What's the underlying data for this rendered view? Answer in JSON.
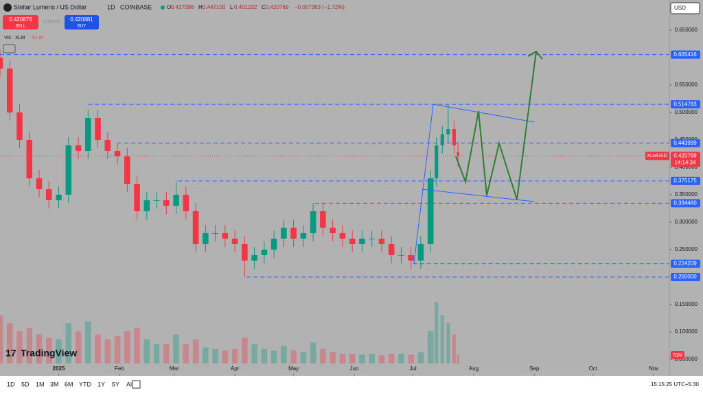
{
  "header": {
    "symbol": "Stellar Lumens / US Dollar",
    "interval": "1D",
    "exchange": "COINBASE",
    "ohlc": [
      {
        "key": "O",
        "value": "0.427998"
      },
      {
        "key": "H",
        "value": "0.447100"
      },
      {
        "key": "L",
        "value": "0.401232"
      },
      {
        "key": "C",
        "value": "0.420769"
      }
    ],
    "change": "−0.007383 (−1.72%)"
  },
  "trade": {
    "sell_price": "0.420876",
    "sell_label": "SELL",
    "buy_price": "0.420881",
    "buy_label": "BUY",
    "spread": "0.000005"
  },
  "volume_legend": {
    "label": "Vol · XLM",
    "value": "51 M"
  },
  "currency": "USD",
  "logo": "TradingView",
  "toolbar": {
    "ranges": [
      "1D",
      "5D",
      "1M",
      "3M",
      "6M",
      "YTD",
      "1Y",
      "5Y",
      "All"
    ],
    "clock": "15:15:25 UTC+5:30"
  },
  "chart_data": {
    "type": "candlestick",
    "x": [
      -30,
      -25,
      -20,
      -15,
      -10,
      -5,
      0,
      5,
      10,
      15,
      20,
      25,
      30,
      35,
      40,
      45,
      50,
      55,
      60,
      65,
      70,
      75,
      80,
      85,
      90,
      95,
      100,
      105,
      110,
      115,
      120,
      125,
      130,
      135,
      140,
      145,
      150,
      155,
      160,
      165,
      170,
      175,
      180,
      185,
      190,
      193,
      196,
      199,
      202,
      204
    ],
    "open": [
      0.6,
      0.58,
      0.5,
      0.45,
      0.38,
      0.36,
      0.34,
      0.35,
      0.44,
      0.43,
      0.49,
      0.45,
      0.43,
      0.42,
      0.37,
      0.32,
      0.34,
      0.34,
      0.33,
      0.35,
      0.32,
      0.26,
      0.28,
      0.28,
      0.27,
      0.26,
      0.23,
      0.24,
      0.25,
      0.27,
      0.29,
      0.27,
      0.28,
      0.32,
      0.29,
      0.28,
      0.27,
      0.26,
      0.27,
      0.27,
      0.26,
      0.24,
      0.24,
      0.23,
      0.26,
      0.38,
      0.44,
      0.46,
      0.47,
      0.427998
    ],
    "high": [
      0.615,
      0.595,
      0.515,
      0.465,
      0.395,
      0.375,
      0.365,
      0.455,
      0.455,
      0.505,
      0.505,
      0.465,
      0.445,
      0.435,
      0.385,
      0.355,
      0.355,
      0.355,
      0.375,
      0.365,
      0.335,
      0.295,
      0.295,
      0.295,
      0.285,
      0.275,
      0.255,
      0.265,
      0.285,
      0.305,
      0.305,
      0.295,
      0.335,
      0.335,
      0.305,
      0.295,
      0.285,
      0.285,
      0.285,
      0.285,
      0.275,
      0.255,
      0.255,
      0.275,
      0.395,
      0.455,
      0.475,
      0.515,
      0.485,
      0.4471
    ],
    "low": [
      0.565,
      0.485,
      0.435,
      0.365,
      0.345,
      0.325,
      0.325,
      0.335,
      0.415,
      0.415,
      0.435,
      0.415,
      0.405,
      0.355,
      0.305,
      0.305,
      0.325,
      0.315,
      0.315,
      0.305,
      0.245,
      0.245,
      0.265,
      0.255,
      0.245,
      0.2,
      0.215,
      0.225,
      0.235,
      0.255,
      0.255,
      0.255,
      0.265,
      0.275,
      0.265,
      0.255,
      0.245,
      0.245,
      0.255,
      0.245,
      0.225,
      0.225,
      0.215,
      0.215,
      0.245,
      0.365,
      0.425,
      0.445,
      0.425,
      0.401232
    ],
    "close": [
      0.58,
      0.5,
      0.45,
      0.38,
      0.36,
      0.34,
      0.35,
      0.44,
      0.43,
      0.49,
      0.45,
      0.43,
      0.42,
      0.37,
      0.32,
      0.34,
      0.34,
      0.33,
      0.35,
      0.32,
      0.26,
      0.28,
      0.28,
      0.27,
      0.26,
      0.23,
      0.24,
      0.25,
      0.27,
      0.29,
      0.27,
      0.28,
      0.32,
      0.29,
      0.28,
      0.27,
      0.26,
      0.27,
      0.27,
      0.26,
      0.24,
      0.24,
      0.23,
      0.26,
      0.38,
      0.44,
      0.46,
      0.47,
      0.44,
      0.420769
    ],
    "volume": [
      300,
      250,
      200,
      220,
      180,
      160,
      150,
      250,
      200,
      260,
      180,
      150,
      170,
      200,
      220,
      150,
      120,
      120,
      180,
      120,
      150,
      100,
      90,
      80,
      90,
      160,
      120,
      90,
      80,
      110,
      80,
      70,
      130,
      90,
      70,
      60,
      60,
      55,
      60,
      50,
      60,
      60,
      55,
      70,
      200,
      380,
      300,
      250,
      180,
      51
    ],
    "volume_ylim": [
      0,
      2200
    ],
    "xlim": [
      -30,
      312
    ],
    "xticks": [
      {
        "value": 0,
        "label": "2025"
      },
      {
        "value": 31,
        "label": "Feb"
      },
      {
        "value": 59,
        "label": "Mar"
      },
      {
        "value": 90,
        "label": "Apr"
      },
      {
        "value": 120,
        "label": "May"
      },
      {
        "value": 151,
        "label": "Jun"
      },
      {
        "value": 181,
        "label": "Jul"
      },
      {
        "value": 212,
        "label": "Aug"
      },
      {
        "value": 243,
        "label": "Sep"
      },
      {
        "value": 273,
        "label": "Oct"
      },
      {
        "value": 304,
        "label": "Nov"
      }
    ],
    "ylim": [
      0.02375,
      0.705
    ],
    "yticks": [
      {
        "value": 0.65,
        "label": "0.650000"
      },
      {
        "value": 0.55,
        "label": "0.550000"
      },
      {
        "value": 0.5,
        "label": "0.500000"
      },
      {
        "value": 0.45,
        "label": "0.450000"
      },
      {
        "value": 0.4,
        "label": "0.400000"
      },
      {
        "value": 0.35,
        "label": "0.350000"
      },
      {
        "value": 0.3,
        "label": "0.300000"
      },
      {
        "value": 0.25,
        "label": "0.250000"
      },
      {
        "value": 0.15,
        "label": "0.150000"
      },
      {
        "value": 0.1,
        "label": "0.100000"
      },
      {
        "value": 0.05,
        "label": "0.050000"
      }
    ],
    "levels": [
      {
        "value": 0.605416,
        "label": "0.605416",
        "x": -30
      },
      {
        "value": 0.514783,
        "label": "0.514783",
        "x": 15
      },
      {
        "value": 0.443999,
        "label": "0.443999",
        "x": 30
      },
      {
        "value": 0.375175,
        "label": "0.375175",
        "x": 61
      },
      {
        "value": 0.33446,
        "label": "0.334460",
        "x": 131
      },
      {
        "value": 0.224209,
        "label": "0.224209",
        "x": 181
      },
      {
        "value": 0.2,
        "label": "0.200000",
        "x": 96
      }
    ],
    "price_tag": {
      "symbol": "XLMUSD",
      "value": 0.420769,
      "label": "0.420769",
      "countdown": "14:14:34"
    },
    "volume_tag": "51M",
    "up_color": "#089981",
    "down_color": "#f23645",
    "level_color": "#2962ff"
  }
}
